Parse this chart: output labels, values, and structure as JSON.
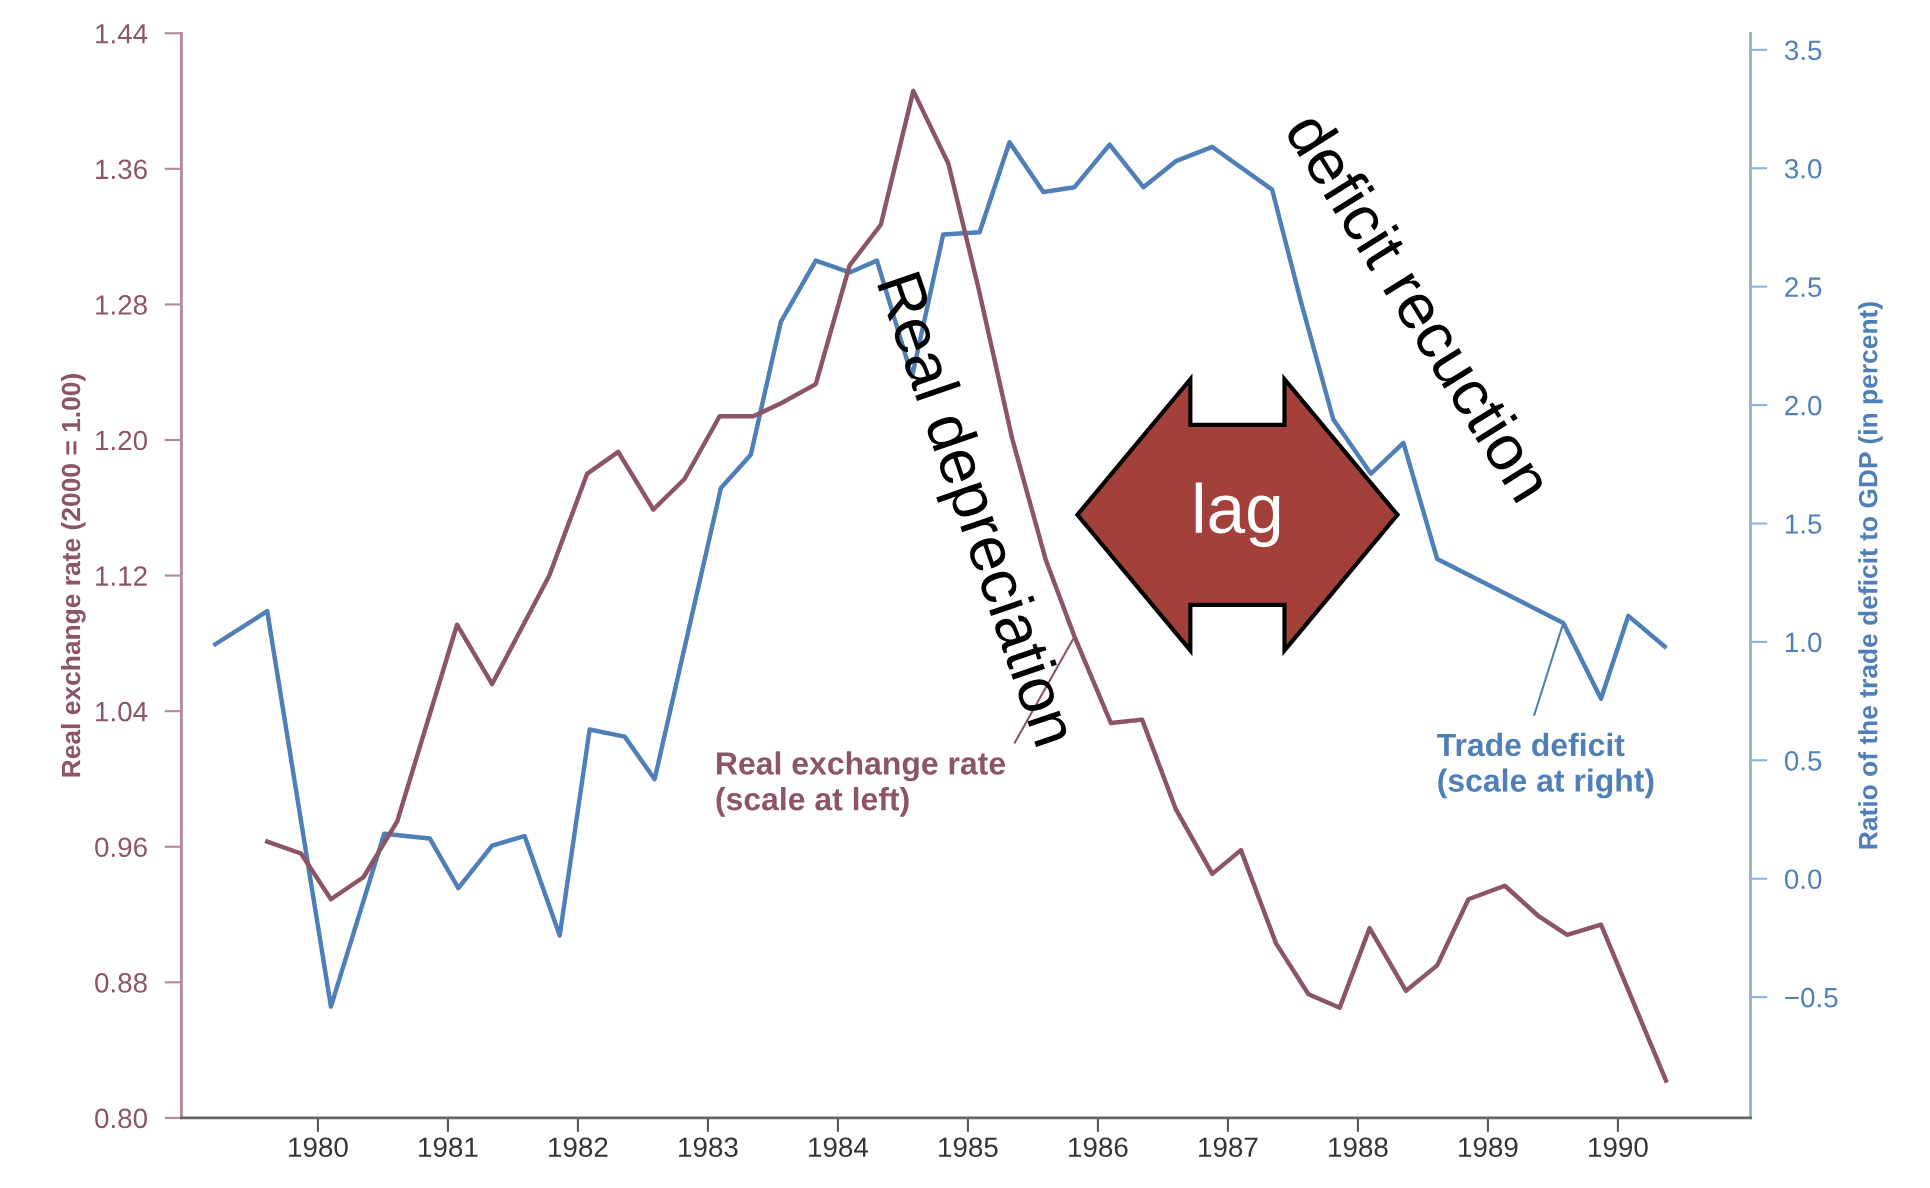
{
  "chart_data": {
    "type": "line",
    "ylabel": "Real exchange rate (2000 = 1.00)",
    "y2label": "Ratio of the trade deficit to GDP (in percent)",
    "xlim": [
      1978.95,
      1991.02
    ],
    "xticks": [
      1980,
      1981,
      1982,
      1983,
      1984,
      1985,
      1986,
      1987,
      1988,
      1989,
      1990
    ],
    "ylim": [
      0.8,
      1.44
    ],
    "yticks": [
      {
        "value": 0.8,
        "label": "0.80"
      },
      0.88,
      0.96,
      1.04,
      1.12,
      {
        "value": 1.2,
        "label": "1.20"
      },
      1.28,
      1.36,
      1.44
    ],
    "y2lim": [
      -1.01,
      3.57
    ],
    "y2ticks": [
      {
        "value": -0.5,
        "label": "−0.5"
      },
      {
        "value": 0,
        "label": "0.0"
      },
      0.5,
      {
        "value": 1,
        "label": "1.0"
      },
      1.5,
      {
        "value": 2,
        "label": "2.0"
      },
      2.5,
      {
        "value": 3,
        "label": "3.0"
      },
      3.5
    ],
    "grid": false,
    "legend": false,
    "marker": "none",
    "line_style": "solid",
    "series": [
      {
        "name": "Real exchange rate (scale at left)",
        "color": "#8b5566",
        "axis": "y",
        "x": [
          1979.61,
          1979.87,
          1980.1,
          1980.35,
          1980.61,
          1981.07,
          1981.34,
          1981.78,
          1982.07,
          1982.31,
          1982.58,
          1982.82,
          1983.09,
          1983.35,
          1983.57,
          1983.83,
          1984.09,
          1984.33,
          1984.58,
          1984.85,
          1985.08,
          1985.34,
          1985.6,
          1985.82,
          1986.1,
          1986.34,
          1986.6,
          1986.88,
          1987.1,
          1987.37,
          1987.62,
          1987.86,
          1988.09,
          1988.37,
          1988.61,
          1988.85,
          1989.13,
          1989.39,
          1989.61,
          1989.87,
          1990.37
        ],
        "values": [
          0.963,
          0.956,
          0.929,
          0.942,
          0.975,
          1.091,
          1.056,
          1.12,
          1.18,
          1.193,
          1.159,
          1.177,
          1.214,
          1.214,
          1.222,
          1.233,
          1.303,
          1.327,
          1.406,
          1.363,
          1.29,
          1.201,
          1.129,
          1.084,
          1.033,
          1.035,
          0.982,
          0.944,
          0.958,
          0.903,
          0.873,
          0.865,
          0.912,
          0.875,
          0.89,
          0.929,
          0.937,
          0.919,
          0.908,
          0.914,
          0.822
        ]
      },
      {
        "name": "Trade deficit (scale at right)",
        "color": "#4f7fb8",
        "axis": "y2",
        "x": [
          1979.21,
          1979.61,
          1980.1,
          1980.51,
          1980.86,
          1981.08,
          1981.34,
          1981.59,
          1981.86,
          1982.09,
          1982.36,
          1982.59,
          1983.1,
          1983.33,
          1983.56,
          1983.83,
          1984.09,
          1984.3,
          1984.57,
          1984.81,
          1985.09,
          1985.32,
          1985.58,
          1985.82,
          1986.09,
          1986.35,
          1986.6,
          1986.88,
          1987.34,
          1987.56,
          1987.81,
          1988.1,
          1988.35,
          1988.61,
          1989.58,
          1989.87,
          1990.08,
          1990.36
        ],
        "values": [
          0.99,
          1.13,
          -0.54,
          0.19,
          0.17,
          -0.04,
          0.14,
          0.18,
          -0.24,
          0.63,
          0.6,
          0.42,
          1.65,
          1.79,
          2.35,
          2.61,
          2.56,
          2.61,
          2.12,
          2.72,
          2.73,
          3.11,
          2.9,
          2.92,
          3.1,
          2.92,
          3.03,
          3.09,
          2.91,
          2.44,
          1.94,
          1.71,
          1.84,
          1.35,
          1.08,
          0.76,
          1.11,
          0.98
        ]
      }
    ],
    "annotations": [
      "Real depreciation",
      "deficit recuction",
      "lag"
    ]
  }
}
